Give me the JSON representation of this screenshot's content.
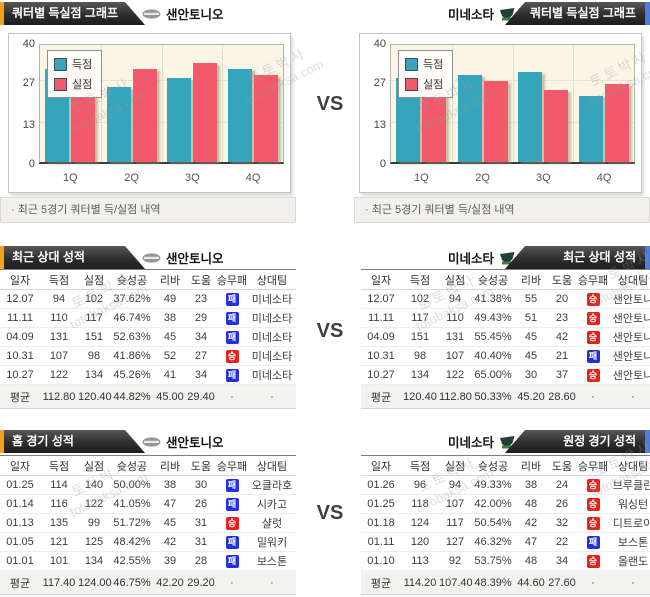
{
  "page": {
    "vs_label": "VS"
  },
  "teams": {
    "left": "샌안토니오",
    "right": "미네소타"
  },
  "colors": {
    "accent_orange": "#f5a11c",
    "accent_blue": "#4a7edb",
    "scored_bar": "#36a5bb",
    "conceded_bar": "#f25a6b",
    "win_badge": "#e8211a",
    "loss_badge": "#2531e0"
  },
  "watermark": {
    "line1": "토토박사",
    "line2": "totobaksa.com"
  },
  "sections": {
    "quarter_chart": {
      "left_tab": "쿼터별 득실점 그래프",
      "right_tab": "쿼터별 득실점 그래프",
      "note": "· 최근 5경기 쿼터별 득/실점 내역"
    },
    "head_to_head": {
      "left_tab": "최근 상대 성적",
      "right_tab": "최근 상대 성적"
    },
    "venue": {
      "left_tab": "홈 경기 성적",
      "right_tab": "원정 경기 성적"
    }
  },
  "chart_data": [
    {
      "type": "bar",
      "team": "샌안토니오",
      "title": "쿼터별 득실점 그래프",
      "categories": [
        "1Q",
        "2Q",
        "3Q",
        "4Q"
      ],
      "series": [
        {
          "name": "득점",
          "color": "#36a5bb",
          "values": [
            31,
            25,
            28,
            31
          ]
        },
        {
          "name": "실점",
          "color": "#f25a6b",
          "values": [
            32.5,
            31,
            33,
            29
          ]
        }
      ],
      "ylim": [
        0,
        40
      ],
      "yticks": [
        0,
        13,
        27,
        40
      ],
      "legend_position": "top-left",
      "grid": true
    },
    {
      "type": "bar",
      "team": "미네소타",
      "title": "쿼터별 득실점 그래프",
      "categories": [
        "1Q",
        "2Q",
        "3Q",
        "4Q"
      ],
      "series": [
        {
          "name": "득점",
          "color": "#36a5bb",
          "values": [
            28,
            29,
            30,
            22
          ]
        },
        {
          "name": "실점",
          "color": "#f25a6b",
          "values": [
            29,
            27,
            24,
            26
          ]
        }
      ],
      "ylim": [
        0,
        40
      ],
      "yticks": [
        0,
        13,
        27,
        40
      ],
      "legend_position": "top-left",
      "grid": true
    }
  ],
  "tables": {
    "columns": [
      "일자",
      "득점",
      "실점",
      "슛성공",
      "리바",
      "도움",
      "승무패",
      "상대팀"
    ],
    "h2h_left": {
      "team": "샌안토니오",
      "rows": [
        [
          "12.07",
          "94",
          "102",
          "37.62%",
          "49",
          "23",
          "패",
          "미네소타"
        ],
        [
          "11.11",
          "110",
          "117",
          "46.74%",
          "38",
          "29",
          "패",
          "미네소타"
        ],
        [
          "04.09",
          "131",
          "151",
          "52.63%",
          "45",
          "34",
          "패",
          "미네소타"
        ],
        [
          "10.31",
          "107",
          "98",
          "41.86%",
          "52",
          "27",
          "승",
          "미네소타"
        ],
        [
          "10.27",
          "122",
          "134",
          "45.26%",
          "41",
          "34",
          "패",
          "미네소타"
        ]
      ],
      "avg": [
        "평균",
        "112.80",
        "120.40",
        "44.82%",
        "45.00",
        "29.40",
        "·",
        "·"
      ]
    },
    "h2h_right": {
      "team": "미네소타",
      "rows": [
        [
          "12.07",
          "102",
          "94",
          "41.38%",
          "55",
          "20",
          "승",
          "샌안토니"
        ],
        [
          "11.11",
          "117",
          "110",
          "49.43%",
          "51",
          "23",
          "승",
          "샌안토니"
        ],
        [
          "04.09",
          "151",
          "131",
          "55.45%",
          "45",
          "42",
          "승",
          "샌안토니"
        ],
        [
          "10.31",
          "98",
          "107",
          "40.40%",
          "45",
          "21",
          "패",
          "샌안토니"
        ],
        [
          "10.27",
          "134",
          "122",
          "65.00%",
          "30",
          "37",
          "승",
          "샌안토니"
        ]
      ],
      "avg": [
        "평균",
        "120.40",
        "112.80",
        "50.33%",
        "45.20",
        "28.60",
        "·",
        "·"
      ]
    },
    "home_left": {
      "team": "샌안토니오",
      "rows": [
        [
          "01.25",
          "114",
          "140",
          "50.00%",
          "38",
          "30",
          "패",
          "오클라호"
        ],
        [
          "01.14",
          "116",
          "122",
          "41.05%",
          "47",
          "26",
          "패",
          "시카고"
        ],
        [
          "01.13",
          "135",
          "99",
          "51.72%",
          "45",
          "31",
          "승",
          "샬럿"
        ],
        [
          "01.05",
          "121",
          "125",
          "48.42%",
          "42",
          "31",
          "패",
          "밀워키"
        ],
        [
          "01.01",
          "101",
          "134",
          "42.55%",
          "39",
          "28",
          "패",
          "보스톤"
        ]
      ],
      "avg": [
        "평균",
        "117.40",
        "124.00",
        "46.75%",
        "42.20",
        "29.20",
        "·",
        "·"
      ]
    },
    "away_right": {
      "team": "미네소타",
      "rows": [
        [
          "01.26",
          "96",
          "94",
          "49.33%",
          "38",
          "24",
          "승",
          "브루클린"
        ],
        [
          "01.25",
          "118",
          "107",
          "42.00%",
          "48",
          "26",
          "승",
          "워싱턴"
        ],
        [
          "01.18",
          "124",
          "117",
          "50.54%",
          "42",
          "32",
          "승",
          "디트로이"
        ],
        [
          "01.11",
          "120",
          "127",
          "46.32%",
          "47",
          "22",
          "패",
          "보스톤"
        ],
        [
          "01.10",
          "113",
          "92",
          "53.75%",
          "48",
          "34",
          "승",
          "올랜도"
        ]
      ],
      "avg": [
        "평균",
        "114.20",
        "107.40",
        "48.39%",
        "44.60",
        "27.60",
        "·",
        "·"
      ]
    }
  }
}
